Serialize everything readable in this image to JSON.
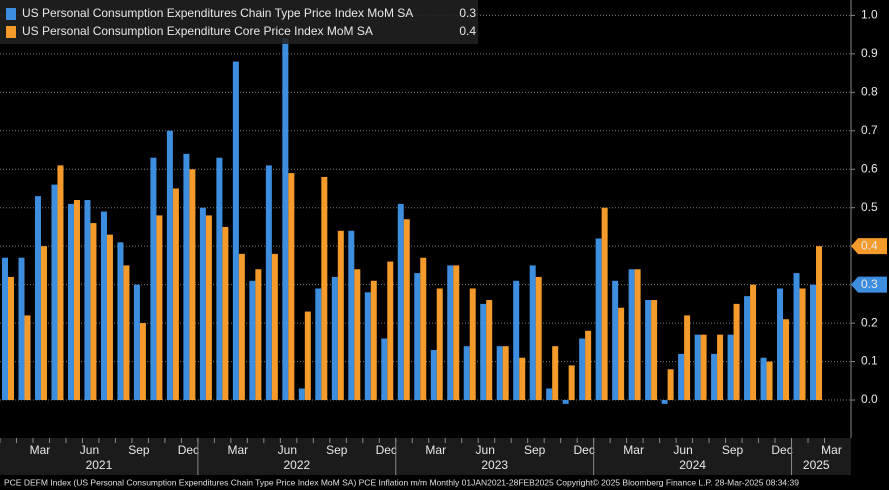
{
  "chart_data": {
    "type": "bar",
    "footer": "PCE DEFM Index (US Personal Consumption Expenditures Chain Type Price Index MoM SA) PCE Inflation m/m  Monthly 01JAN2021-28FEB2025 Copyright© 2025 Bloomberg Finance L.P.  28-Mar-2025 08:34:39",
    "categories": [
      null,
      null,
      "Mar",
      null,
      null,
      "Jun",
      null,
      null,
      "Sep",
      null,
      null,
      "Dec",
      null,
      null,
      "Mar",
      null,
      null,
      "Jun",
      null,
      null,
      "Sep",
      null,
      null,
      "Dec",
      null,
      null,
      "Mar",
      null,
      null,
      "Jun",
      null,
      null,
      "Sep",
      null,
      null,
      "Dec",
      null,
      null,
      "Mar",
      null,
      null,
      "Jun",
      null,
      null,
      "Sep",
      null,
      null,
      "Dec",
      null,
      null,
      "Mar"
    ],
    "years": [
      "2021",
      "2022",
      "2023",
      "2024",
      "2025"
    ],
    "series": [
      {
        "name": "US Personal Consumption Expenditures Chain Type Price Index MoM SA",
        "color": "#3e8ee0",
        "last_label": "0.3",
        "values": [
          0.37,
          0.37,
          0.53,
          0.56,
          0.51,
          0.52,
          0.49,
          0.41,
          0.3,
          0.63,
          0.7,
          0.64,
          0.5,
          0.63,
          0.88,
          0.31,
          0.61,
          0.94,
          0.03,
          0.29,
          0.32,
          0.44,
          0.28,
          0.16,
          0.51,
          0.33,
          0.13,
          0.35,
          0.14,
          0.25,
          0.14,
          0.31,
          0.35,
          0.03,
          -0.01,
          0.16,
          0.42,
          0.31,
          0.34,
          0.26,
          -0.01,
          0.12,
          0.17,
          0.12,
          0.17,
          0.27,
          0.11,
          0.29,
          0.33,
          0.3,
          null
        ]
      },
      {
        "name": "US Personal Consumption Expenditure Core Price Index MoM SA",
        "color": "#f59b2b",
        "last_label": "0.4",
        "values": [
          0.32,
          0.22,
          0.4,
          0.61,
          0.52,
          0.46,
          0.43,
          0.35,
          0.2,
          0.48,
          0.55,
          0.6,
          0.48,
          0.45,
          0.38,
          0.34,
          0.38,
          0.59,
          0.23,
          0.58,
          0.44,
          0.34,
          0.31,
          0.36,
          0.47,
          0.37,
          0.29,
          0.35,
          0.29,
          0.26,
          0.14,
          0.11,
          0.32,
          0.14,
          0.09,
          0.18,
          0.5,
          0.24,
          0.34,
          0.26,
          0.08,
          0.22,
          0.17,
          0.17,
          0.25,
          0.3,
          0.1,
          0.21,
          0.29,
          0.4,
          null
        ]
      }
    ],
    "ylim": [
      -0.1,
      1.04
    ],
    "yticks": [
      {
        "value": 0,
        "label": "0.0"
      },
      0.1,
      0.2,
      0.3,
      0.4,
      0.5,
      0.6,
      0.7,
      0.8,
      0.9,
      {
        "value": 1,
        "label": "1.0"
      }
    ],
    "grid": true
  }
}
